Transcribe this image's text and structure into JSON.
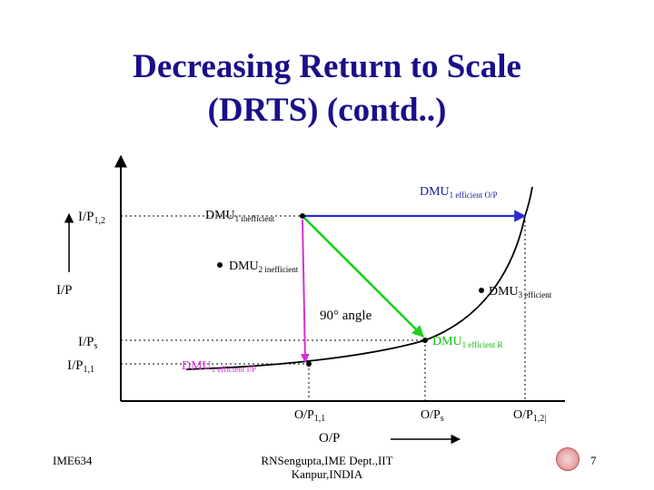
{
  "title": {
    "line1": "Decreasing Return to Scale",
    "line2": "(DRTS) (contd..)"
  },
  "axes": {
    "y_label": "I/P",
    "x_label": "O/P",
    "y_ticks": [
      {
        "main": "I/P",
        "sub": "1,2"
      },
      {
        "main": "I/P",
        "sub": "s"
      },
      {
        "main": "I/P",
        "sub": "1,1"
      }
    ],
    "x_ticks": [
      {
        "main": "O/P",
        "sub": "1,1"
      },
      {
        "main": "O/P",
        "sub": "s"
      },
      {
        "main": "O/P",
        "sub": "1,2|"
      }
    ]
  },
  "points": {
    "dmu1_ineff": {
      "main": "DMU",
      "sub": "1 inefficient"
    },
    "dmu2_ineff": {
      "main": "DMU",
      "sub": "2 inefficient"
    },
    "dmu3_eff": {
      "main": "DMU",
      "sub": "3 efficient"
    },
    "dmu1_eff_op": {
      "main": "DMU",
      "sub": "1 efficient O/P"
    },
    "dmu1_eff_r": {
      "main": "DMU",
      "sub": "1 efficient R"
    },
    "dmu1_eff_ip": {
      "main": "DMU",
      "sub": "1 efficient I/P"
    }
  },
  "annotation": {
    "angle": "90° angle"
  },
  "footer": {
    "course": "IME634",
    "author_line1": "RNSengupta,IME Dept.,IIT",
    "author_line2": "Kanpur,INDIA",
    "page": "7"
  },
  "colors": {
    "title": "#1a0f8a",
    "blue_arrow": "#2a2ad0",
    "green_arrow": "#19d219",
    "magenta_arrow": "#d62fd6",
    "magenta_label": "#d62fd6",
    "green_label": "#11bb11",
    "blue_label": "#1a1a9a"
  }
}
